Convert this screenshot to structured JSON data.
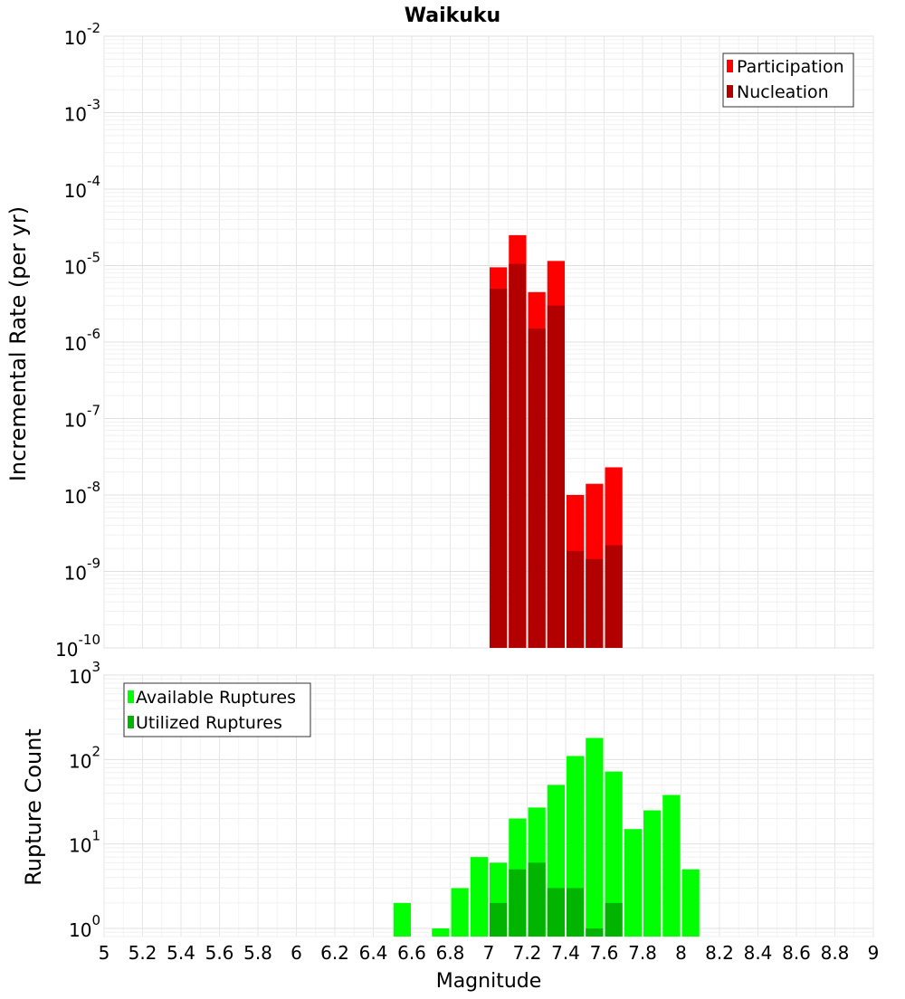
{
  "chart_data": [
    {
      "type": "bar",
      "title": "Waikuku",
      "xlabel": "",
      "ylabel": "Incremental Rate (per yr)",
      "y_scale": "log",
      "ylim": [
        1e-10,
        0.01
      ],
      "xlim": [
        5.0,
        9.0
      ],
      "y_ticks": [
        {
          "base": "10",
          "exp": "-2"
        },
        {
          "base": "10",
          "exp": "-3"
        },
        {
          "base": "10",
          "exp": "-4"
        },
        {
          "base": "10",
          "exp": "-5"
        },
        {
          "base": "10",
          "exp": "-6"
        },
        {
          "base": "10",
          "exp": "-7"
        },
        {
          "base": "10",
          "exp": "-8"
        },
        {
          "base": "10",
          "exp": "-9"
        },
        {
          "base": "10",
          "exp": "-10"
        }
      ],
      "bin_width": 0.1,
      "legend_position": "top-right",
      "series": [
        {
          "name": "Participation",
          "color": "#ff0000",
          "x": [
            7.0,
            7.1,
            7.2,
            7.3,
            7.4,
            7.5,
            7.6
          ],
          "values": [
            9.5e-06,
            2.5e-05,
            4.5e-06,
            1.15e-05,
            1e-08,
            1.4e-08,
            2.3e-08
          ]
        },
        {
          "name": "Nucleation",
          "color": "#b20000",
          "x": [
            7.0,
            7.1,
            7.2,
            7.3,
            7.4,
            7.5,
            7.6
          ],
          "values": [
            5e-06,
            1.05e-05,
            1.5e-06,
            3e-06,
            1.85e-09,
            1.45e-09,
            2.2e-09
          ]
        }
      ]
    },
    {
      "type": "bar",
      "title": "",
      "xlabel": "Magnitude",
      "ylabel": "Rupture Count",
      "y_scale": "log",
      "ylim": [
        0.8,
        1000
      ],
      "xlim": [
        5.0,
        9.0
      ],
      "x_ticks": [
        "5",
        "5.2",
        "5.4",
        "5.6",
        "5.8",
        "6",
        "6.2",
        "6.4",
        "6.6",
        "6.8",
        "7",
        "7.2",
        "7.4",
        "7.6",
        "7.8",
        "8",
        "8.2",
        "8.4",
        "8.6",
        "8.8",
        "9"
      ],
      "y_ticks": [
        {
          "base": "10",
          "exp": "3"
        },
        {
          "base": "10",
          "exp": "2"
        },
        {
          "base": "10",
          "exp": "1"
        },
        {
          "base": "10",
          "exp": "0"
        }
      ],
      "bin_width": 0.1,
      "legend_position": "top-left",
      "series": [
        {
          "name": "Available Ruptures",
          "color": "#00ff00",
          "x": [
            6.5,
            6.6,
            6.7,
            6.8,
            6.9,
            7.0,
            7.1,
            7.2,
            7.3,
            7.4,
            7.5,
            7.6,
            7.7,
            7.8,
            7.9,
            8.0
          ],
          "values": [
            2,
            0,
            1,
            3,
            7,
            6,
            20,
            27,
            50,
            110,
            180,
            72,
            15,
            25,
            38,
            5
          ]
        },
        {
          "name": "Utilized Ruptures",
          "color": "#00b400",
          "x": [
            7.0,
            7.1,
            7.2,
            7.3,
            7.4,
            7.5,
            7.6
          ],
          "values": [
            2,
            5,
            6,
            3,
            3,
            1,
            2
          ]
        }
      ]
    }
  ]
}
